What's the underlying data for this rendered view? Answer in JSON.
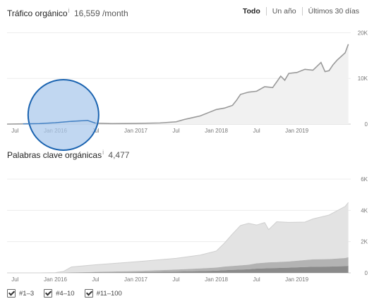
{
  "traffic": {
    "title": "Tráfico orgánico",
    "value": "16,559 /month",
    "range_buttons": [
      {
        "label": "Todo",
        "active": true
      },
      {
        "label": "Un año",
        "active": false
      },
      {
        "label": "Últimos 30 días",
        "active": false
      }
    ]
  },
  "keywords": {
    "title": "Palabras clave orgánicas",
    "value": "4,477"
  },
  "legend": [
    {
      "label": "#1–3",
      "checked": true
    },
    {
      "label": "#4–10",
      "checked": true
    },
    {
      "label": "#11–100",
      "checked": true
    }
  ],
  "colors": {
    "traffic_line": "#999999",
    "traffic_fill": "#f1f1f1",
    "highlight_fill": "#a9c8ec",
    "highlight_stroke": "#1a63b0",
    "kw_11_100": "#e3e3e3",
    "kw_4_10": "#b3b3b3",
    "kw_1_3": "#8a8a8a"
  },
  "chart_data": [
    {
      "type": "area",
      "x_tick_labels": [
        "Jul",
        "Jan 2016",
        "Jul",
        "Jan 2017",
        "Jul",
        "Jan 2018",
        "Jul",
        "Jan 2019"
      ],
      "x_ticks": [
        2015.5,
        2016.0,
        2016.5,
        2017.0,
        2017.5,
        2018.0,
        2018.5,
        2019.0
      ],
      "xlim": [
        2015.4,
        2019.67
      ],
      "y_tick_labels": [
        "0",
        "10K",
        "20K"
      ],
      "y_ticks": [
        0,
        10000,
        20000
      ],
      "ylim": [
        0,
        21000
      ],
      "grid": true,
      "series": [
        {
          "x": [
            2015.4,
            2015.6,
            2015.8,
            2016.0,
            2016.2,
            2016.4,
            2016.5,
            2016.7,
            2017.0,
            2017.3,
            2017.5,
            2017.6,
            2017.7,
            2017.8,
            2017.9,
            2018.0,
            2018.1,
            2018.2,
            2018.25,
            2018.3,
            2018.4,
            2018.5,
            2018.6,
            2018.7,
            2018.8,
            2018.85,
            2018.9,
            2019.0,
            2019.1,
            2019.2,
            2019.3,
            2019.35,
            2019.4,
            2019.45,
            2019.5,
            2019.55,
            2019.6,
            2019.64
          ],
          "y": [
            0,
            50,
            100,
            300,
            600,
            800,
            200,
            100,
            150,
            250,
            500,
            1000,
            1400,
            1800,
            2500,
            3200,
            3500,
            4100,
            5200,
            6500,
            7000,
            7200,
            8200,
            8000,
            10500,
            9600,
            11100,
            11300,
            12000,
            11800,
            13500,
            11500,
            11700,
            13000,
            14000,
            14800,
            15600,
            17500
          ]
        }
      ]
    },
    {
      "type": "area",
      "stacked": true,
      "x_tick_labels": [
        "Jul",
        "Jan 2016",
        "Jul",
        "Jan 2017",
        "Jul",
        "Jan 2018",
        "Jul",
        "Jan 2019"
      ],
      "x_ticks": [
        2015.5,
        2016.0,
        2016.5,
        2017.0,
        2017.5,
        2018.0,
        2018.5,
        2019.0
      ],
      "xlim": [
        2015.4,
        2019.67
      ],
      "y_tick_labels": [
        "0",
        "2K",
        "4K",
        "6K"
      ],
      "y_ticks": [
        0,
        2000,
        4000,
        6000
      ],
      "ylim": [
        0,
        6000
      ],
      "grid": true,
      "x": [
        2015.4,
        2015.8,
        2016.0,
        2016.1,
        2016.2,
        2016.5,
        2017.0,
        2017.5,
        2017.8,
        2018.0,
        2018.1,
        2018.2,
        2018.3,
        2018.4,
        2018.5,
        2018.6,
        2018.65,
        2018.75,
        2018.9,
        2019.1,
        2019.2,
        2019.4,
        2019.6,
        2019.64
      ],
      "series": [
        {
          "name": "#1–3",
          "values": [
            0,
            0,
            0,
            0,
            10,
            20,
            40,
            80,
            110,
            140,
            170,
            190,
            210,
            230,
            270,
            290,
            300,
            310,
            330,
            370,
            390,
            400,
            430,
            450
          ]
        },
        {
          "name": "#4–10",
          "values": [
            0,
            0,
            5,
            10,
            20,
            40,
            70,
            130,
            170,
            200,
            230,
            250,
            270,
            290,
            340,
            360,
            370,
            380,
            400,
            450,
            470,
            480,
            520,
            550
          ]
        },
        {
          "name": "#11–100",
          "values": [
            0,
            0,
            10,
            80,
            350,
            460,
            600,
            720,
            860,
            1060,
            1500,
            2050,
            2550,
            2650,
            2450,
            2570,
            2100,
            2580,
            2500,
            2430,
            2590,
            2820,
            3300,
            3500
          ]
        }
      ]
    }
  ]
}
